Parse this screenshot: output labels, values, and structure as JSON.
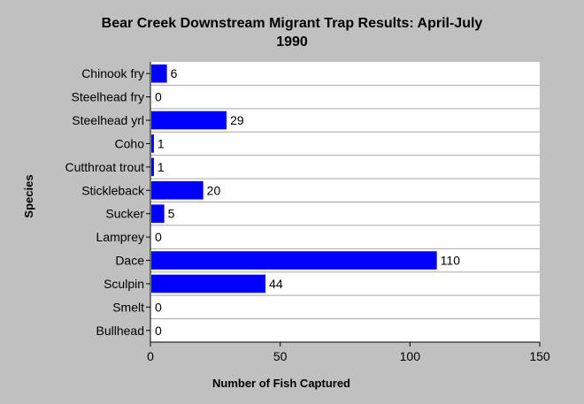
{
  "chart_data": {
    "type": "bar",
    "orientation": "horizontal",
    "title_line1": "Bear Creek Downstream Migrant Trap Results: April-July",
    "title_line2": "1990",
    "xlabel": "Number of Fish Captured",
    "ylabel": "Species",
    "xlim": [
      0,
      150
    ],
    "xticks": [
      0,
      50,
      100,
      150
    ],
    "grid": "horizontal",
    "bar_color": "#0000ff",
    "categories": [
      "Chinook fry",
      "Steelhead fry",
      "Steelhead yrl",
      "Coho",
      "Cutthroat trout",
      "Stickleback",
      "Sucker",
      "Lamprey",
      "Dace",
      "Sculpin",
      "Smelt",
      "Bullhead"
    ],
    "values": [
      6,
      0,
      29,
      1,
      1,
      20,
      5,
      0,
      110,
      44,
      0,
      0
    ]
  }
}
